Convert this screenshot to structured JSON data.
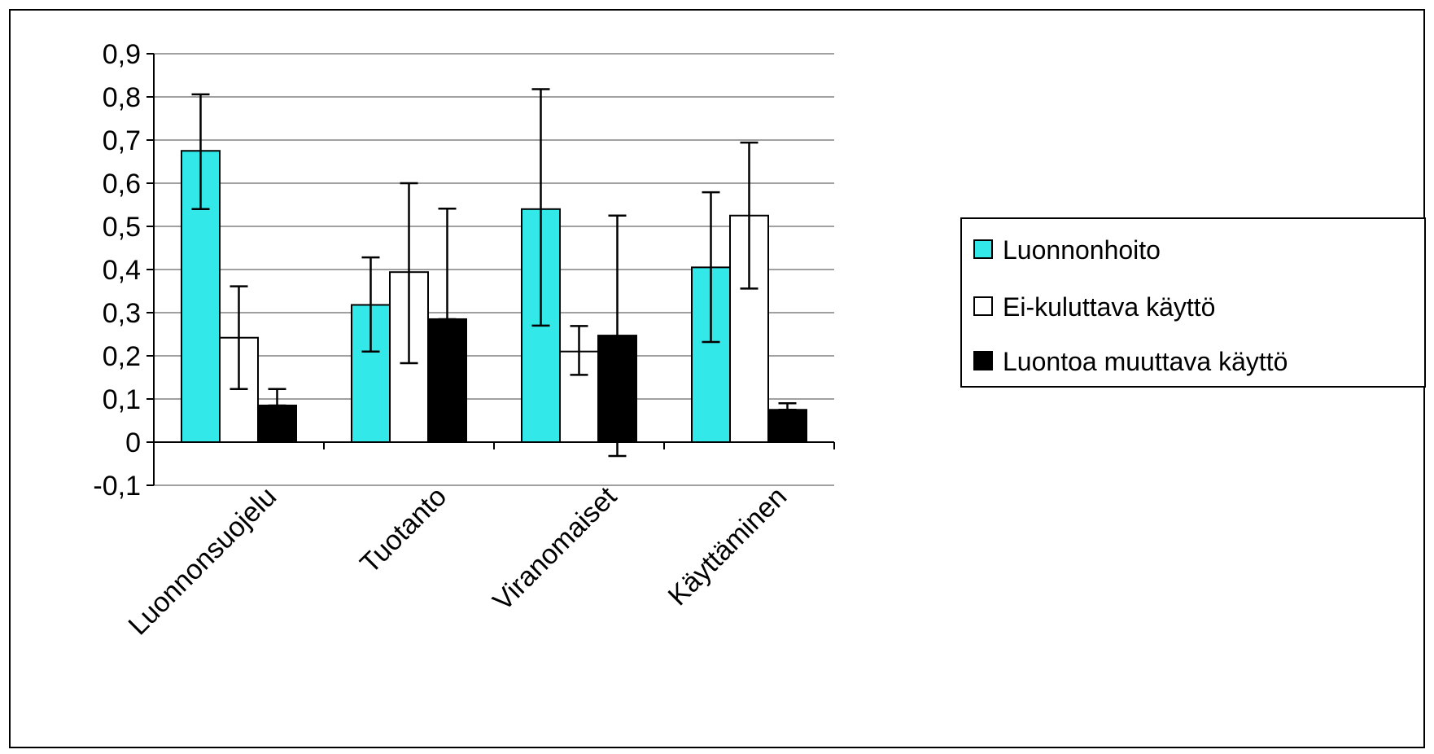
{
  "chart_data": {
    "type": "bar",
    "title": "",
    "xlabel": "",
    "ylabel": "",
    "categories": [
      "Luonnonsuojelu",
      "Tuotanto",
      "Viranomaiset",
      "Käyttäminen"
    ],
    "ylim": [
      -0.1,
      0.9
    ],
    "yticks": [
      -0.1,
      0,
      0.1,
      0.2,
      0.3,
      0.4,
      0.5,
      0.6,
      0.7,
      0.8,
      0.9
    ],
    "ytick_labels": [
      "-0,1",
      "0",
      "0,1",
      "0,2",
      "0,3",
      "0,4",
      "0,5",
      "0,6",
      "0,7",
      "0,8",
      "0,9"
    ],
    "grid": true,
    "legend_position": "right",
    "series": [
      {
        "name": "Luonnonhoito",
        "color": "#33e8e8",
        "values": [
          0.675,
          0.318,
          0.54,
          0.405
        ],
        "err_low": [
          0.54,
          0.21,
          0.27,
          0.232
        ],
        "err_high": [
          0.806,
          0.428,
          0.818,
          0.579
        ]
      },
      {
        "name": "Ei-kuluttava käyttö",
        "color": "#ffffff",
        "values": [
          0.242,
          0.394,
          0.21,
          0.525
        ],
        "err_low": [
          0.123,
          0.183,
          0.156,
          0.356
        ],
        "err_high": [
          0.361,
          0.6,
          0.269,
          0.694
        ]
      },
      {
        "name": "Luontoa muuttava käyttö",
        "color": "#000000",
        "values": [
          0.085,
          0.285,
          0.247,
          0.075
        ],
        "err_low": [
          0.085,
          0.285,
          -0.032,
          0.075
        ],
        "err_high": [
          0.123,
          0.541,
          0.525,
          0.09
        ]
      }
    ]
  }
}
